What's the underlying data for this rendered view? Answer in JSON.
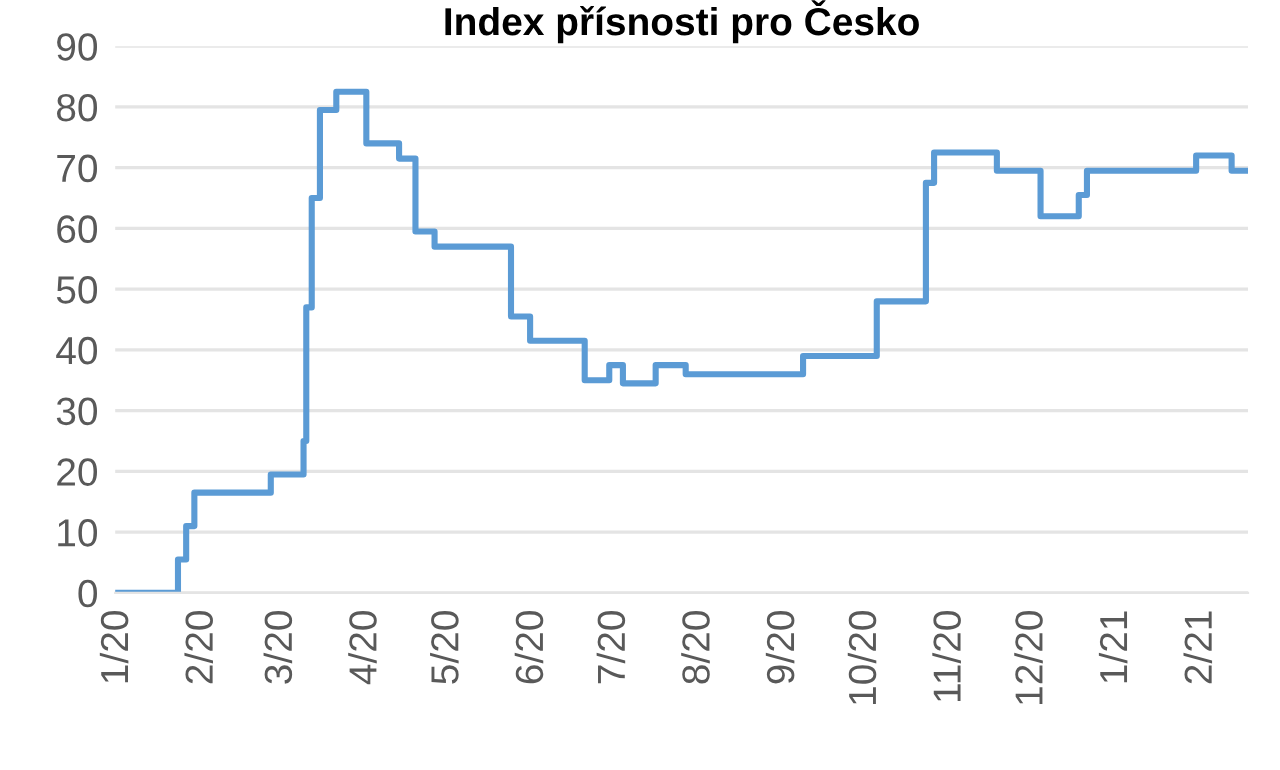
{
  "chart_data": {
    "type": "step",
    "title": "Index přísnosti pro Česko",
    "x": [
      "2020-01-01",
      "2020-01-23",
      "2020-01-26",
      "2020-01-29",
      "2020-02-26",
      "2020-03-09",
      "2020-03-10",
      "2020-03-12",
      "2020-03-15",
      "2020-03-21",
      "2020-04-01",
      "2020-04-13",
      "2020-04-19",
      "2020-04-26",
      "2020-05-24",
      "2020-05-31",
      "2020-06-20",
      "2020-06-29",
      "2020-07-04",
      "2020-07-16",
      "2020-07-27",
      "2020-09-08",
      "2020-10-05",
      "2020-10-23",
      "2020-10-26",
      "2020-11-18",
      "2020-12-04",
      "2020-12-18",
      "2020-12-21",
      "2021-01-30",
      "2021-02-12",
      "2021-02-17"
    ],
    "series": [
      {
        "color": "#5b9bd5",
        "values": [
          0,
          5.5,
          11,
          16.5,
          19.5,
          25,
          47,
          65,
          79.5,
          82.5,
          74,
          71.5,
          59.5,
          57,
          45.5,
          41.5,
          35,
          37.5,
          34.5,
          37.5,
          36,
          39,
          48,
          67.5,
          72.5,
          69.5,
          62,
          65.5,
          69.5,
          72,
          69.5,
          69.5
        ]
      }
    ],
    "xlim": [
      "2019-12-31",
      "2021-02-18"
    ],
    "xticks": [
      {
        "value": "2020-01-01",
        "label": "1/20"
      },
      {
        "value": "2020-02-01",
        "label": "2/20"
      },
      {
        "value": "2020-03-01",
        "label": "3/20"
      },
      {
        "value": "2020-04-01",
        "label": "4/20"
      },
      {
        "value": "2020-05-01",
        "label": "5/20"
      },
      {
        "value": "2020-06-01",
        "label": "6/20"
      },
      {
        "value": "2020-07-01",
        "label": "7/20"
      },
      {
        "value": "2020-08-01",
        "label": "8/20"
      },
      {
        "value": "2020-09-01",
        "label": "9/20"
      },
      {
        "value": "2020-10-01",
        "label": "10/20"
      },
      {
        "value": "2020-11-01",
        "label": "11/20"
      },
      {
        "value": "2020-12-01",
        "label": "12/20"
      },
      {
        "value": "2021-01-01",
        "label": "1/21"
      },
      {
        "value": "2021-02-01",
        "label": "2/21"
      }
    ],
    "ylim": [
      0,
      90
    ],
    "yticks": [
      0,
      10,
      20,
      30,
      40,
      50,
      60,
      70,
      80,
      90
    ],
    "grid": "y",
    "line_style": "solid"
  }
}
